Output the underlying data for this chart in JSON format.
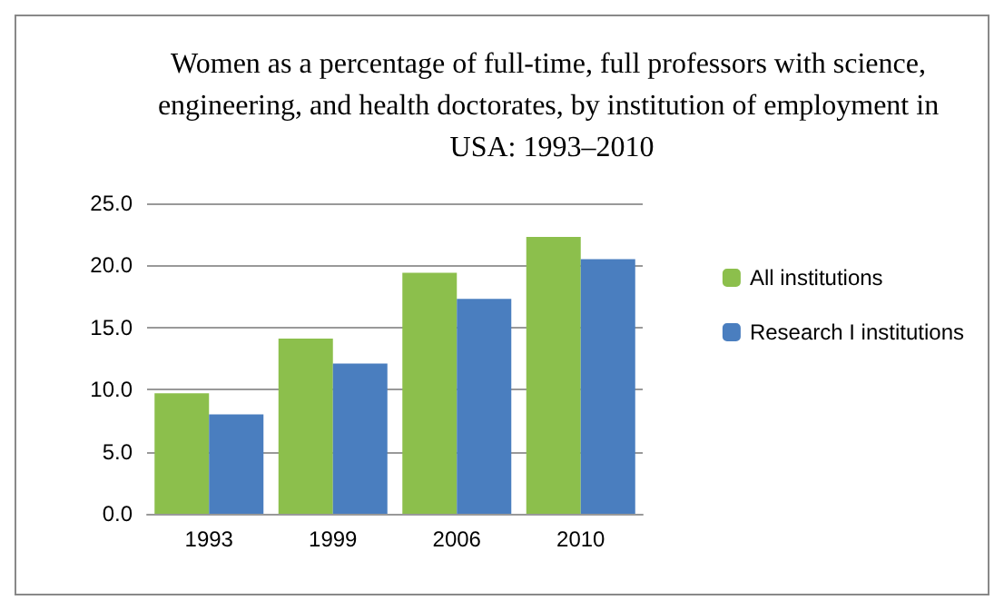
{
  "chart_data": {
    "type": "bar",
    "title": "Women as a percentage of full-time, full professors with science, engineering, and health doctorates, by institution of employment in USA: 1993–2010",
    "categories": [
      "1993",
      "1999",
      "2006",
      "2010"
    ],
    "series": [
      {
        "name": "All institutions",
        "color": "#8cbf4c",
        "values": [
          9.7,
          14.1,
          19.4,
          22.3
        ]
      },
      {
        "name": "Research I institutions",
        "color": "#4a7ebf",
        "values": [
          8.0,
          12.1,
          17.3,
          20.5
        ]
      }
    ],
    "ylim": [
      0,
      25
    ],
    "yticks": [
      {
        "value": 0,
        "label": "0.0"
      },
      {
        "value": 5,
        "label": "5.0"
      },
      {
        "value": 10,
        "label": "10.0"
      },
      {
        "value": 15,
        "label": "15.0"
      },
      {
        "value": 20,
        "label": "20.0"
      },
      {
        "value": 25,
        "label": "25.0"
      }
    ],
    "grid": "y",
    "legend": "right"
  }
}
